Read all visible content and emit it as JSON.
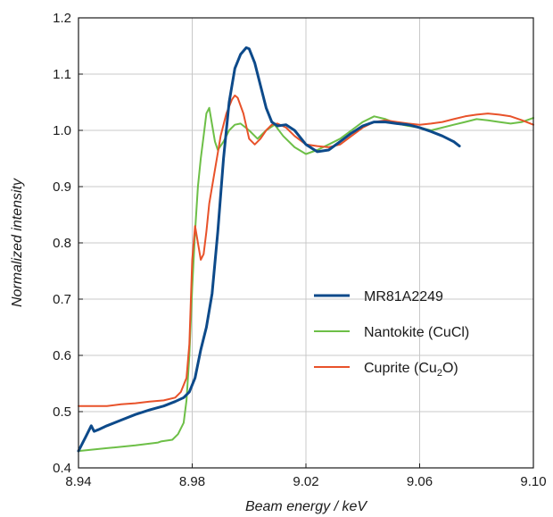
{
  "chart_data": {
    "type": "line",
    "title": "",
    "xlabel": "Beam energy / keV",
    "ylabel": "Normalized intensity",
    "xlim": [
      8.94,
      9.1
    ],
    "ylim": [
      0.4,
      1.2
    ],
    "x_ticks": [
      "8.94",
      "8.98",
      "9.02",
      "9.06",
      "9.10"
    ],
    "x_tick_values": [
      8.94,
      8.98,
      9.02,
      9.06,
      9.1
    ],
    "y_ticks": [
      "0.4",
      "0.5",
      "0.6",
      "0.7",
      "0.8",
      "0.9",
      "1.0",
      "1.1",
      "1.2"
    ],
    "y_tick_values": [
      0.4,
      0.5,
      0.6,
      0.7,
      0.8,
      0.9,
      1.0,
      1.1,
      1.2
    ],
    "grid": true,
    "legend_position": "lower-right",
    "series": [
      {
        "name": "MR81A2249",
        "color": "#0d4a8a",
        "x": [
          8.94,
          8.9425,
          8.9445,
          8.9455,
          8.947,
          8.95,
          8.955,
          8.96,
          8.965,
          8.97,
          8.974,
          8.977,
          8.979,
          8.981,
          8.983,
          8.985,
          8.987,
          8.989,
          8.991,
          8.993,
          8.995,
          8.997,
          8.999,
          9.0,
          9.002,
          9.004,
          9.006,
          9.008,
          9.01,
          9.013,
          9.016,
          9.02,
          9.024,
          9.028,
          9.032,
          9.036,
          9.04,
          9.044,
          9.048,
          9.052,
          9.056,
          9.06,
          9.064,
          9.068,
          9.072,
          9.074
        ],
        "y": [
          0.43,
          0.455,
          0.475,
          0.465,
          0.468,
          0.475,
          0.485,
          0.495,
          0.503,
          0.51,
          0.518,
          0.525,
          0.535,
          0.56,
          0.61,
          0.65,
          0.71,
          0.82,
          0.95,
          1.05,
          1.11,
          1.135,
          1.147,
          1.145,
          1.12,
          1.08,
          1.04,
          1.015,
          1.008,
          1.01,
          1.0,
          0.975,
          0.962,
          0.965,
          0.98,
          0.995,
          1.008,
          1.015,
          1.015,
          1.012,
          1.01,
          1.005,
          0.998,
          0.99,
          0.98,
          0.972
        ]
      },
      {
        "name": "Nantokite (CuCl)",
        "color": "#6dbf47",
        "x": [
          8.94,
          8.95,
          8.96,
          8.968,
          8.969,
          8.973,
          8.975,
          8.977,
          8.978,
          8.979,
          8.98,
          8.981,
          8.982,
          8.983,
          8.984,
          8.985,
          8.986,
          8.987,
          8.988,
          8.989,
          8.991,
          8.993,
          8.995,
          8.997,
          9.0,
          9.003,
          9.006,
          9.009,
          9.012,
          9.016,
          9.02,
          9.024,
          9.028,
          9.032,
          9.036,
          9.04,
          9.044,
          9.048,
          9.052,
          9.056,
          9.06,
          9.064,
          9.068,
          9.072,
          9.076,
          9.08,
          9.084,
          9.088,
          9.092,
          9.096,
          9.1
        ],
        "y": [
          0.43,
          0.435,
          0.44,
          0.445,
          0.447,
          0.45,
          0.46,
          0.48,
          0.52,
          0.6,
          0.72,
          0.82,
          0.9,
          0.95,
          0.99,
          1.03,
          1.04,
          1.01,
          0.98,
          0.965,
          0.98,
          1.0,
          1.01,
          1.012,
          1.0,
          0.985,
          1.0,
          1.01,
          0.99,
          0.97,
          0.958,
          0.965,
          0.975,
          0.985,
          1.0,
          1.015,
          1.025,
          1.02,
          1.012,
          1.008,
          1.005,
          1.0,
          1.005,
          1.01,
          1.015,
          1.02,
          1.018,
          1.015,
          1.012,
          1.015,
          1.022
        ]
      },
      {
        "name": "Cuprite (Cu2O)",
        "color": "#e8522a",
        "x": [
          8.94,
          8.945,
          8.95,
          8.955,
          8.96,
          8.965,
          8.97,
          8.974,
          8.976,
          8.978,
          8.979,
          8.98,
          8.981,
          8.982,
          8.983,
          8.984,
          8.985,
          8.986,
          8.988,
          8.99,
          8.992,
          8.994,
          8.995,
          8.996,
          8.998,
          9.0,
          9.002,
          9.004,
          9.006,
          9.008,
          9.01,
          9.013,
          9.016,
          9.02,
          9.024,
          9.028,
          9.032,
          9.036,
          9.04,
          9.044,
          9.048,
          9.052,
          9.056,
          9.06,
          9.064,
          9.068,
          9.072,
          9.076,
          9.08,
          9.084,
          9.088,
          9.092,
          9.096,
          9.1
        ],
        "y": [
          0.51,
          0.51,
          0.51,
          0.513,
          0.515,
          0.518,
          0.52,
          0.525,
          0.535,
          0.56,
          0.62,
          0.77,
          0.83,
          0.8,
          0.77,
          0.78,
          0.82,
          0.87,
          0.93,
          0.99,
          1.03,
          1.055,
          1.062,
          1.058,
          1.03,
          0.985,
          0.975,
          0.985,
          1.0,
          1.01,
          1.012,
          1.005,
          0.99,
          0.975,
          0.972,
          0.97,
          0.975,
          0.99,
          1.005,
          1.015,
          1.018,
          1.015,
          1.012,
          1.01,
          1.012,
          1.015,
          1.02,
          1.025,
          1.028,
          1.03,
          1.028,
          1.025,
          1.018,
          1.01
        ]
      }
    ]
  },
  "legend": [
    {
      "label": "MR81A2249",
      "sub": ""
    },
    {
      "label": "Nantokite (CuCl)",
      "sub": ""
    },
    {
      "label": "Cuprite (Cu",
      "sub": "2",
      "suffix": "O)"
    }
  ]
}
